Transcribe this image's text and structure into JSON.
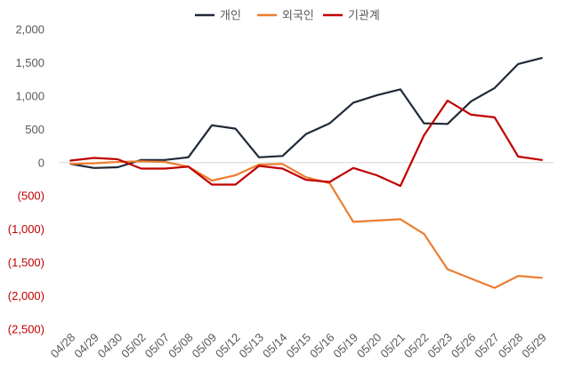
{
  "chart_data": {
    "type": "line",
    "title": "",
    "xlabel": "",
    "ylabel": "",
    "ylim": [
      -2500,
      2000
    ],
    "yticks": [
      2000,
      1500,
      1000,
      500,
      0,
      -500,
      -1000,
      -1500,
      -2000,
      -2500
    ],
    "ytick_labels": [
      "2,000",
      "1,500",
      "1,000",
      "500",
      "0",
      "(500)",
      "(1,000)",
      "(1,500)",
      "(2,000)",
      "(2,500)"
    ],
    "negative_color": "#c00000",
    "grid": false,
    "zero_line": true,
    "legend_position": "top",
    "categories": [
      "04/28",
      "04/29",
      "04/30",
      "05/02",
      "05/07",
      "05/08",
      "05/09",
      "05/12",
      "05/13",
      "05/14",
      "05/15",
      "05/16",
      "05/19",
      "05/20",
      "05/21",
      "05/22",
      "05/23",
      "05/26",
      "05/27",
      "05/28",
      "05/29"
    ],
    "series": [
      {
        "name": "개인",
        "color": "#1f2937",
        "values": [
          -20,
          -80,
          -70,
          40,
          40,
          80,
          560,
          510,
          80,
          100,
          430,
          590,
          900,
          1010,
          1100,
          590,
          580,
          920,
          1120,
          1480,
          1570
        ]
      },
      {
        "name": "외국인",
        "color": "#ed7d31",
        "values": [
          -20,
          -10,
          10,
          20,
          10,
          -60,
          -270,
          -190,
          -30,
          -20,
          -220,
          -310,
          -890,
          -870,
          -850,
          -1070,
          -1600,
          -1740,
          -1880,
          -1700,
          -1730
        ]
      },
      {
        "name": "기관계",
        "color": "#c00000",
        "values": [
          30,
          70,
          50,
          -90,
          -90,
          -60,
          -330,
          -330,
          -50,
          -90,
          -260,
          -290,
          -80,
          -190,
          -350,
          410,
          930,
          720,
          680,
          90,
          40
        ]
      }
    ]
  }
}
